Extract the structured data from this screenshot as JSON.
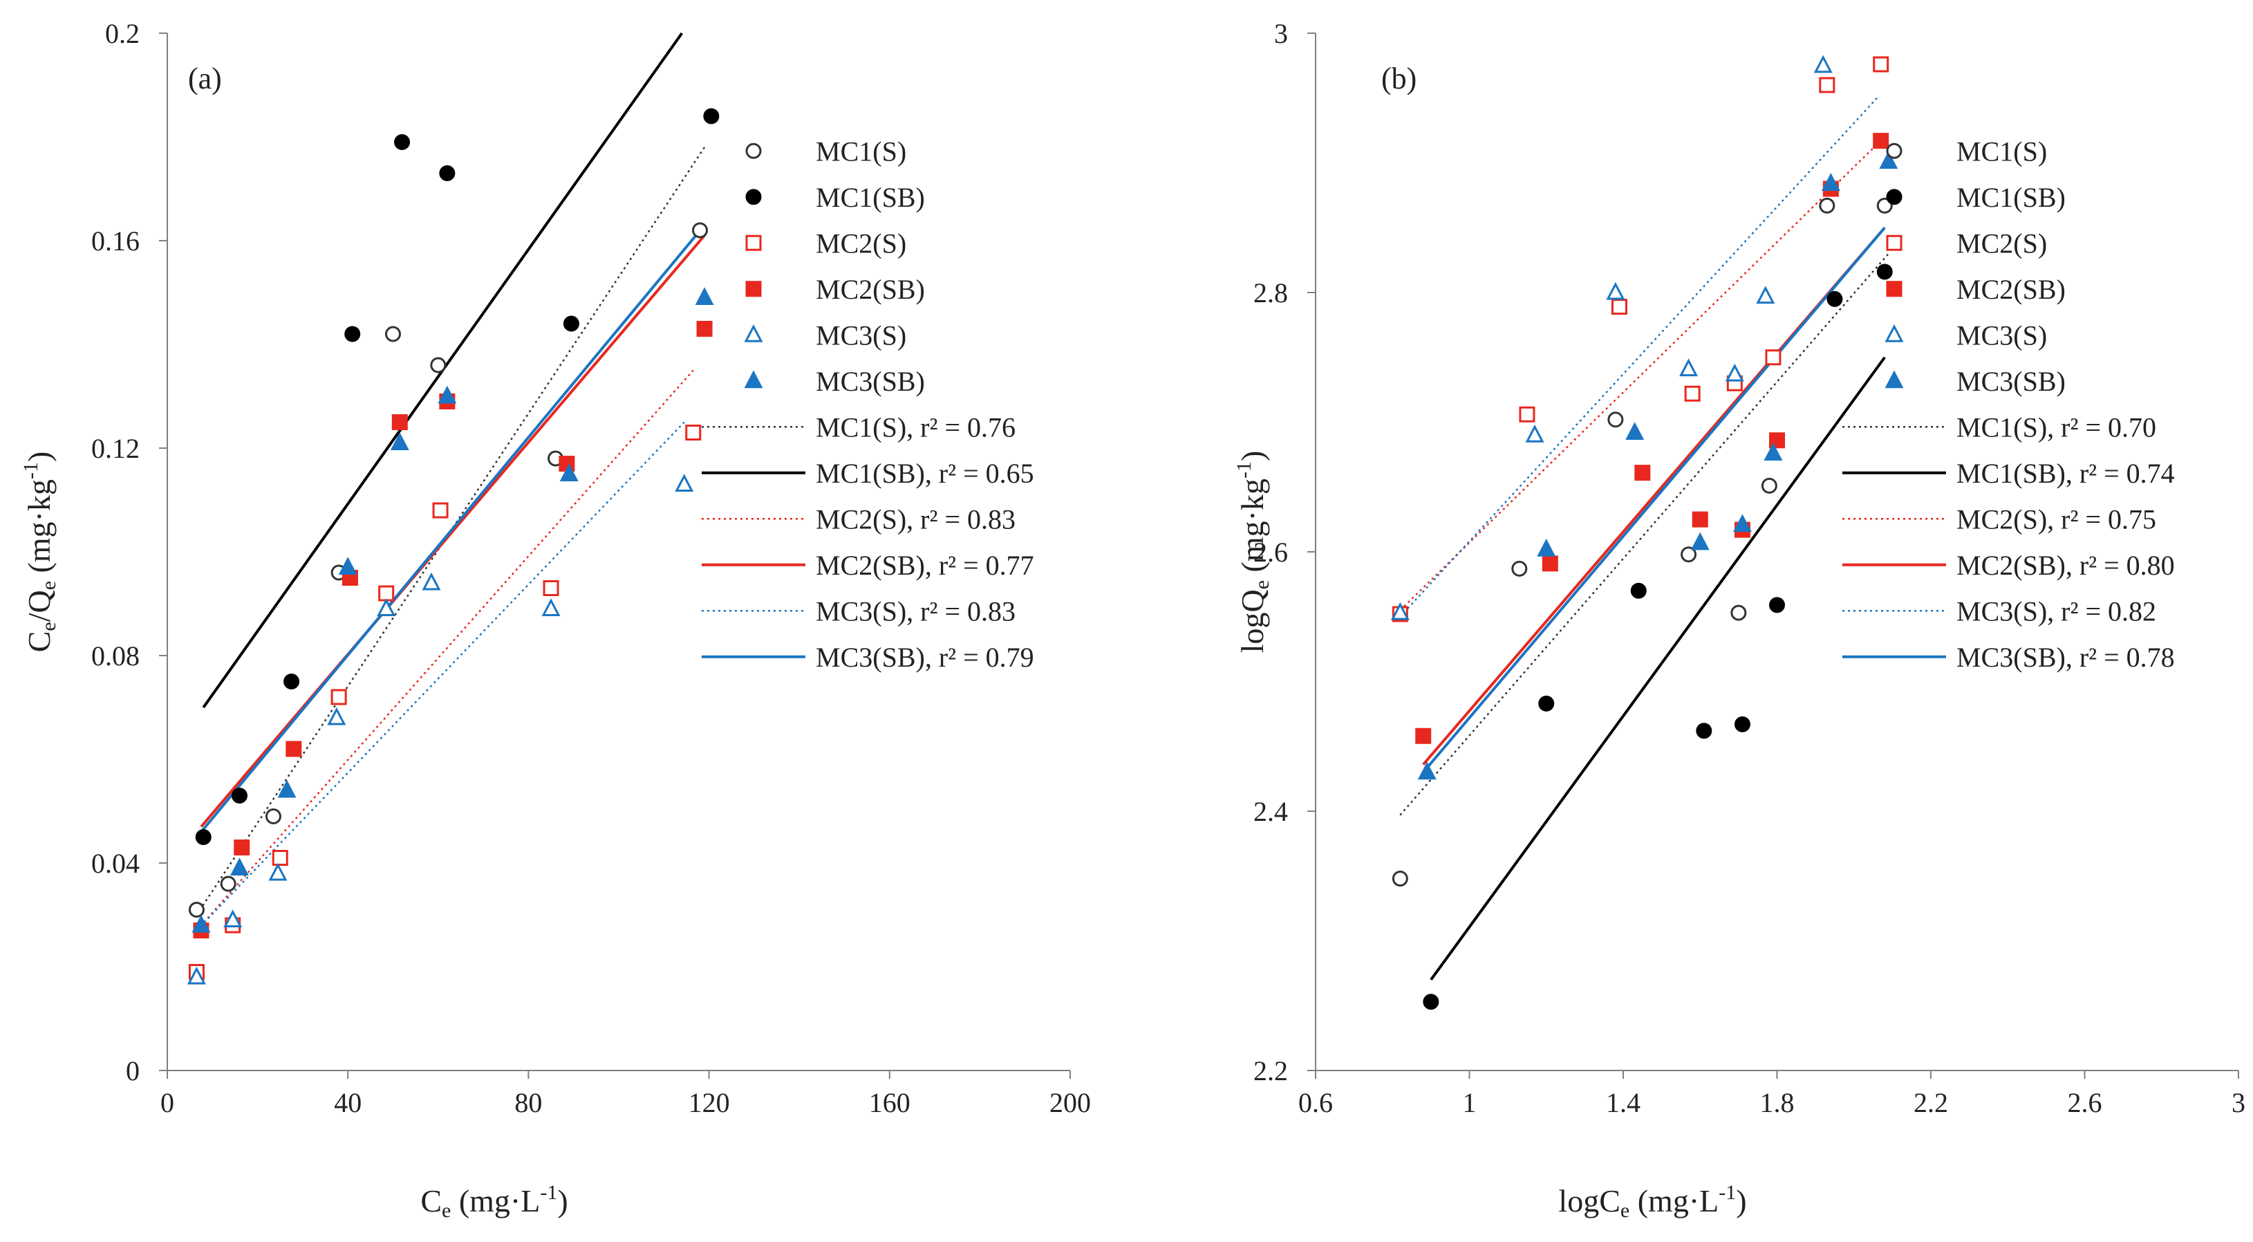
{
  "chart_data": [
    {
      "id": "a",
      "type": "scatter",
      "panel_label": "(a)",
      "xlabel": {
        "main": "C",
        "sub": "e",
        "rest": " (mg·L",
        "sup": "-1",
        "end": ")"
      },
      "ylabel": {
        "main": "C",
        "sub": "e",
        "mid": "/Q",
        "sub2": "e",
        "rest": " (mg·kg",
        "sup": "-1",
        "end": ")"
      },
      "xlim": [
        0,
        200
      ],
      "ylim": [
        0,
        0.2
      ],
      "xticks": [
        0,
        40,
        80,
        120,
        160,
        200
      ],
      "yticks": [
        0,
        0.04,
        0.08,
        0.12,
        0.16,
        0.2
      ],
      "xtick_labels": [
        "0",
        "40",
        "80",
        "120",
        "160",
        "200"
      ],
      "ytick_labels": [
        "0",
        "0.04",
        "0.08",
        "0.12",
        "0.16",
        "0.2"
      ],
      "legend_position": "right",
      "series": [
        {
          "name": "MC1(S)",
          "marker": "circle",
          "filled": false,
          "color": "#333333",
          "points": [
            [
              6.5,
              0.031
            ],
            [
              13.5,
              0.036
            ],
            [
              23.5,
              0.049
            ],
            [
              38,
              0.096
            ],
            [
              50,
              0.142
            ],
            [
              60,
              0.136
            ],
            [
              86,
              0.118
            ],
            [
              118,
              0.162
            ]
          ]
        },
        {
          "name": "MC1(SB)",
          "marker": "circle",
          "filled": true,
          "color": "#000000",
          "points": [
            [
              8,
              0.045
            ],
            [
              16,
              0.053
            ],
            [
              27.5,
              0.075
            ],
            [
              41,
              0.142
            ],
            [
              52,
              0.179
            ],
            [
              62,
              0.173
            ],
            [
              89.5,
              0.144
            ],
            [
              120.5,
              0.184
            ]
          ]
        },
        {
          "name": "MC2(S)",
          "marker": "square",
          "filled": false,
          "color": "#e8281e",
          "points": [
            [
              6.5,
              0.019
            ],
            [
              14.5,
              0.028
            ],
            [
              25,
              0.041
            ],
            [
              38,
              0.072
            ],
            [
              48.5,
              0.092
            ],
            [
              60.5,
              0.108
            ],
            [
              85,
              0.093
            ],
            [
              116.5,
              0.123
            ]
          ]
        },
        {
          "name": "MC2(SB)",
          "marker": "square",
          "filled": true,
          "color": "#e8281e",
          "points": [
            [
              7.5,
              0.027
            ],
            [
              16.5,
              0.043
            ],
            [
              28,
              0.062
            ],
            [
              40.5,
              0.095
            ],
            [
              51.5,
              0.125
            ],
            [
              62,
              0.129
            ],
            [
              88.5,
              0.117
            ],
            [
              119,
              0.143
            ]
          ]
        },
        {
          "name": "MC3(S)",
          "marker": "triangle",
          "filled": false,
          "color": "#1b75c2",
          "points": [
            [
              6.5,
              0.018
            ],
            [
              14.5,
              0.029
            ],
            [
              24.5,
              0.038
            ],
            [
              37.5,
              0.068
            ],
            [
              48.5,
              0.089
            ],
            [
              58.5,
              0.094
            ],
            [
              85,
              0.089
            ],
            [
              114.5,
              0.113
            ]
          ]
        },
        {
          "name": "MC3(SB)",
          "marker": "triangle",
          "filled": true,
          "color": "#1b75c2",
          "points": [
            [
              7.5,
              0.028
            ],
            [
              16,
              0.039
            ],
            [
              26.5,
              0.054
            ],
            [
              40,
              0.097
            ],
            [
              51.5,
              0.121
            ],
            [
              62,
              0.13
            ],
            [
              89,
              0.115
            ],
            [
              119,
              0.149
            ]
          ]
        }
      ],
      "trendlines": [
        {
          "name": "MC1(S), r² = 0.76",
          "style": "dotted",
          "color": "#333333",
          "x": [
            6.5,
            119
          ],
          "y": [
            0.03,
            0.178
          ]
        },
        {
          "name": "MC1(SB), r² = 0.65",
          "style": "solid",
          "color": "#000000",
          "x": [
            8,
            114
          ],
          "y": [
            0.07,
            0.2
          ]
        },
        {
          "name": "MC2(S), r² = 0.83",
          "style": "dotted",
          "color": "#e8281e",
          "x": [
            6.5,
            116.5
          ],
          "y": [
            0.027,
            0.135
          ]
        },
        {
          "name": "MC2(SB), r² = 0.77",
          "style": "solid",
          "color": "#e8281e",
          "x": [
            7.5,
            119
          ],
          "y": [
            0.047,
            0.161
          ]
        },
        {
          "name": "MC3(S), r² = 0.83",
          "style": "dotted",
          "color": "#1b75c2",
          "x": [
            6.5,
            114.5
          ],
          "y": [
            0.027,
            0.125
          ]
        },
        {
          "name": "MC3(SB), r² = 0.79",
          "style": "solid",
          "color": "#1b75c2",
          "x": [
            7.5,
            119
          ],
          "y": [
            0.046,
            0.163
          ]
        }
      ]
    },
    {
      "id": "b",
      "type": "scatter",
      "panel_label": "(b)",
      "xlabel": {
        "main": "logC",
        "sub": "e",
        "rest": " (mg·L",
        "sup": "-1",
        "end": ")"
      },
      "ylabel": {
        "main": "logQ",
        "sub": "e",
        "mid": "",
        "sub2": "",
        "rest": " (mg·kg",
        "sup": "-1",
        "end": ")"
      },
      "xlim": [
        0.6,
        3.0
      ],
      "ylim": [
        2.2,
        3.0
      ],
      "xticks": [
        0.6,
        1.0,
        1.4,
        1.8,
        2.2,
        2.6,
        3.0
      ],
      "yticks": [
        2.2,
        2.4,
        2.6,
        2.8,
        3.0
      ],
      "xtick_labels": [
        "0.6",
        "1",
        "1.4",
        "1.8",
        "2.2",
        "2.6",
        "3"
      ],
      "ytick_labels": [
        "2.2",
        "2.4",
        "2.6",
        "2.8",
        "3"
      ],
      "legend_position": "right",
      "series": [
        {
          "name": "MC1(S)",
          "marker": "circle",
          "filled": false,
          "color": "#333333",
          "points": [
            [
              0.82,
              2.348
            ],
            [
              1.13,
              2.587
            ],
            [
              1.38,
              2.702
            ],
            [
              1.57,
              2.598
            ],
            [
              1.7,
              2.553
            ],
            [
              1.78,
              2.651
            ],
            [
              1.93,
              2.867
            ],
            [
              2.08,
              2.867
            ]
          ]
        },
        {
          "name": "MC1(SB)",
          "marker": "circle",
          "filled": true,
          "color": "#000000",
          "points": [
            [
              0.9,
              2.253
            ],
            [
              1.2,
              2.483
            ],
            [
              1.44,
              2.57
            ],
            [
              1.61,
              2.462
            ],
            [
              1.71,
              2.467
            ],
            [
              1.8,
              2.559
            ],
            [
              1.95,
              2.795
            ],
            [
              2.08,
              2.816
            ]
          ]
        },
        {
          "name": "MC2(S)",
          "marker": "square",
          "filled": false,
          "color": "#e8281e",
          "points": [
            [
              0.82,
              2.552
            ],
            [
              1.15,
              2.706
            ],
            [
              1.39,
              2.789
            ],
            [
              1.58,
              2.722
            ],
            [
              1.69,
              2.73
            ],
            [
              1.79,
              2.75
            ],
            [
              1.93,
              2.96
            ],
            [
              2.07,
              2.976
            ]
          ]
        },
        {
          "name": "MC2(SB)",
          "marker": "square",
          "filled": true,
          "color": "#e8281e",
          "points": [
            [
              0.88,
              2.458
            ],
            [
              1.21,
              2.591
            ],
            [
              1.45,
              2.661
            ],
            [
              1.6,
              2.625
            ],
            [
              1.71,
              2.617
            ],
            [
              1.8,
              2.686
            ],
            [
              1.94,
              2.88
            ],
            [
              2.07,
              2.917
            ]
          ]
        },
        {
          "name": "MC3(S)",
          "marker": "triangle",
          "filled": false,
          "color": "#1b75c2",
          "points": [
            [
              0.82,
              2.553
            ],
            [
              1.17,
              2.69
            ],
            [
              1.38,
              2.8
            ],
            [
              1.57,
              2.741
            ],
            [
              1.69,
              2.737
            ],
            [
              1.77,
              2.797
            ],
            [
              1.92,
              2.975
            ],
            [
              1.94,
              2.884
            ]
          ]
        },
        {
          "name": "MC3(SB)",
          "marker": "triangle",
          "filled": true,
          "color": "#1b75c2",
          "points": [
            [
              0.89,
              2.43
            ],
            [
              1.2,
              2.602
            ],
            [
              1.43,
              2.692
            ],
            [
              1.6,
              2.607
            ],
            [
              1.71,
              2.621
            ],
            [
              1.79,
              2.676
            ],
            [
              1.94,
              2.884
            ],
            [
              2.09,
              2.901
            ]
          ]
        }
      ],
      "trendlines": [
        {
          "name": "MC1(S), r² = 0.70",
          "style": "dotted",
          "color": "#333333",
          "x": [
            0.82,
            2.09
          ],
          "y": [
            2.397,
            2.83
          ]
        },
        {
          "name": "MC1(SB), r² = 0.74",
          "style": "solid",
          "color": "#000000",
          "x": [
            0.9,
            2.08
          ],
          "y": [
            2.27,
            2.75
          ]
        },
        {
          "name": "MC2(S), r² = 0.75",
          "style": "dotted",
          "color": "#e8281e",
          "x": [
            0.82,
            2.08
          ],
          "y": [
            2.555,
            2.92
          ]
        },
        {
          "name": "MC2(SB), r² = 0.80",
          "style": "solid",
          "color": "#e8281e",
          "x": [
            0.88,
            2.08
          ],
          "y": [
            2.436,
            2.85
          ]
        },
        {
          "name": "MC3(S), r² = 0.82",
          "style": "dotted",
          "color": "#1b75c2",
          "x": [
            0.82,
            2.06
          ],
          "y": [
            2.55,
            2.95
          ]
        },
        {
          "name": "MC3(SB), r² = 0.78",
          "style": "solid",
          "color": "#1b75c2",
          "x": [
            0.88,
            2.08
          ],
          "y": [
            2.43,
            2.85
          ]
        }
      ]
    }
  ]
}
